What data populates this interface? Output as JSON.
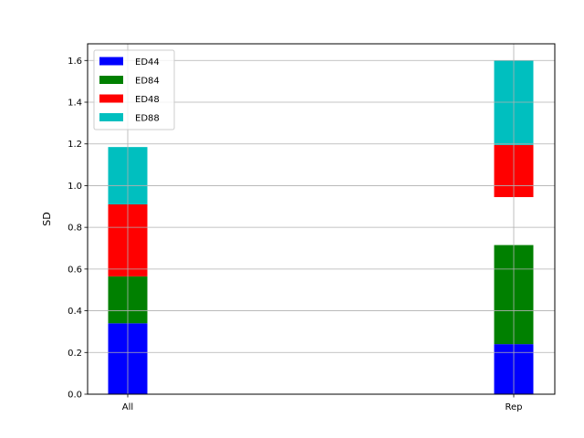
{
  "chart_data": {
    "type": "bar",
    "stacked": true,
    "categories": [
      "All",
      "Rep"
    ],
    "ylabel": "SD",
    "xlabel": "",
    "title": "",
    "ylim": [
      0,
      1.68
    ],
    "yticks": [
      "0.0",
      "0.2",
      "0.4",
      "0.6",
      "0.8",
      "1.0",
      "1.2",
      "1.4",
      "1.6"
    ],
    "grid": true,
    "legend_position": "top-left",
    "series": [
      {
        "name": "ED44",
        "color": "#0000ff",
        "values": [
          [
            0.0,
            0.34
          ],
          [
            0.0,
            0.24
          ]
        ]
      },
      {
        "name": "ED84",
        "color": "#008000",
        "values": [
          [
            0.34,
            0.565
          ],
          [
            0.24,
            0.715
          ]
        ]
      },
      {
        "name": "ED48",
        "color": "#ff0000",
        "values": [
          [
            0.565,
            0.91
          ],
          [
            0.945,
            1.195
          ]
        ]
      },
      {
        "name": "ED88",
        "color": "#00bfbf",
        "values": [
          [
            0.91,
            1.185
          ],
          [
            1.195,
            1.6
          ]
        ]
      }
    ]
  }
}
